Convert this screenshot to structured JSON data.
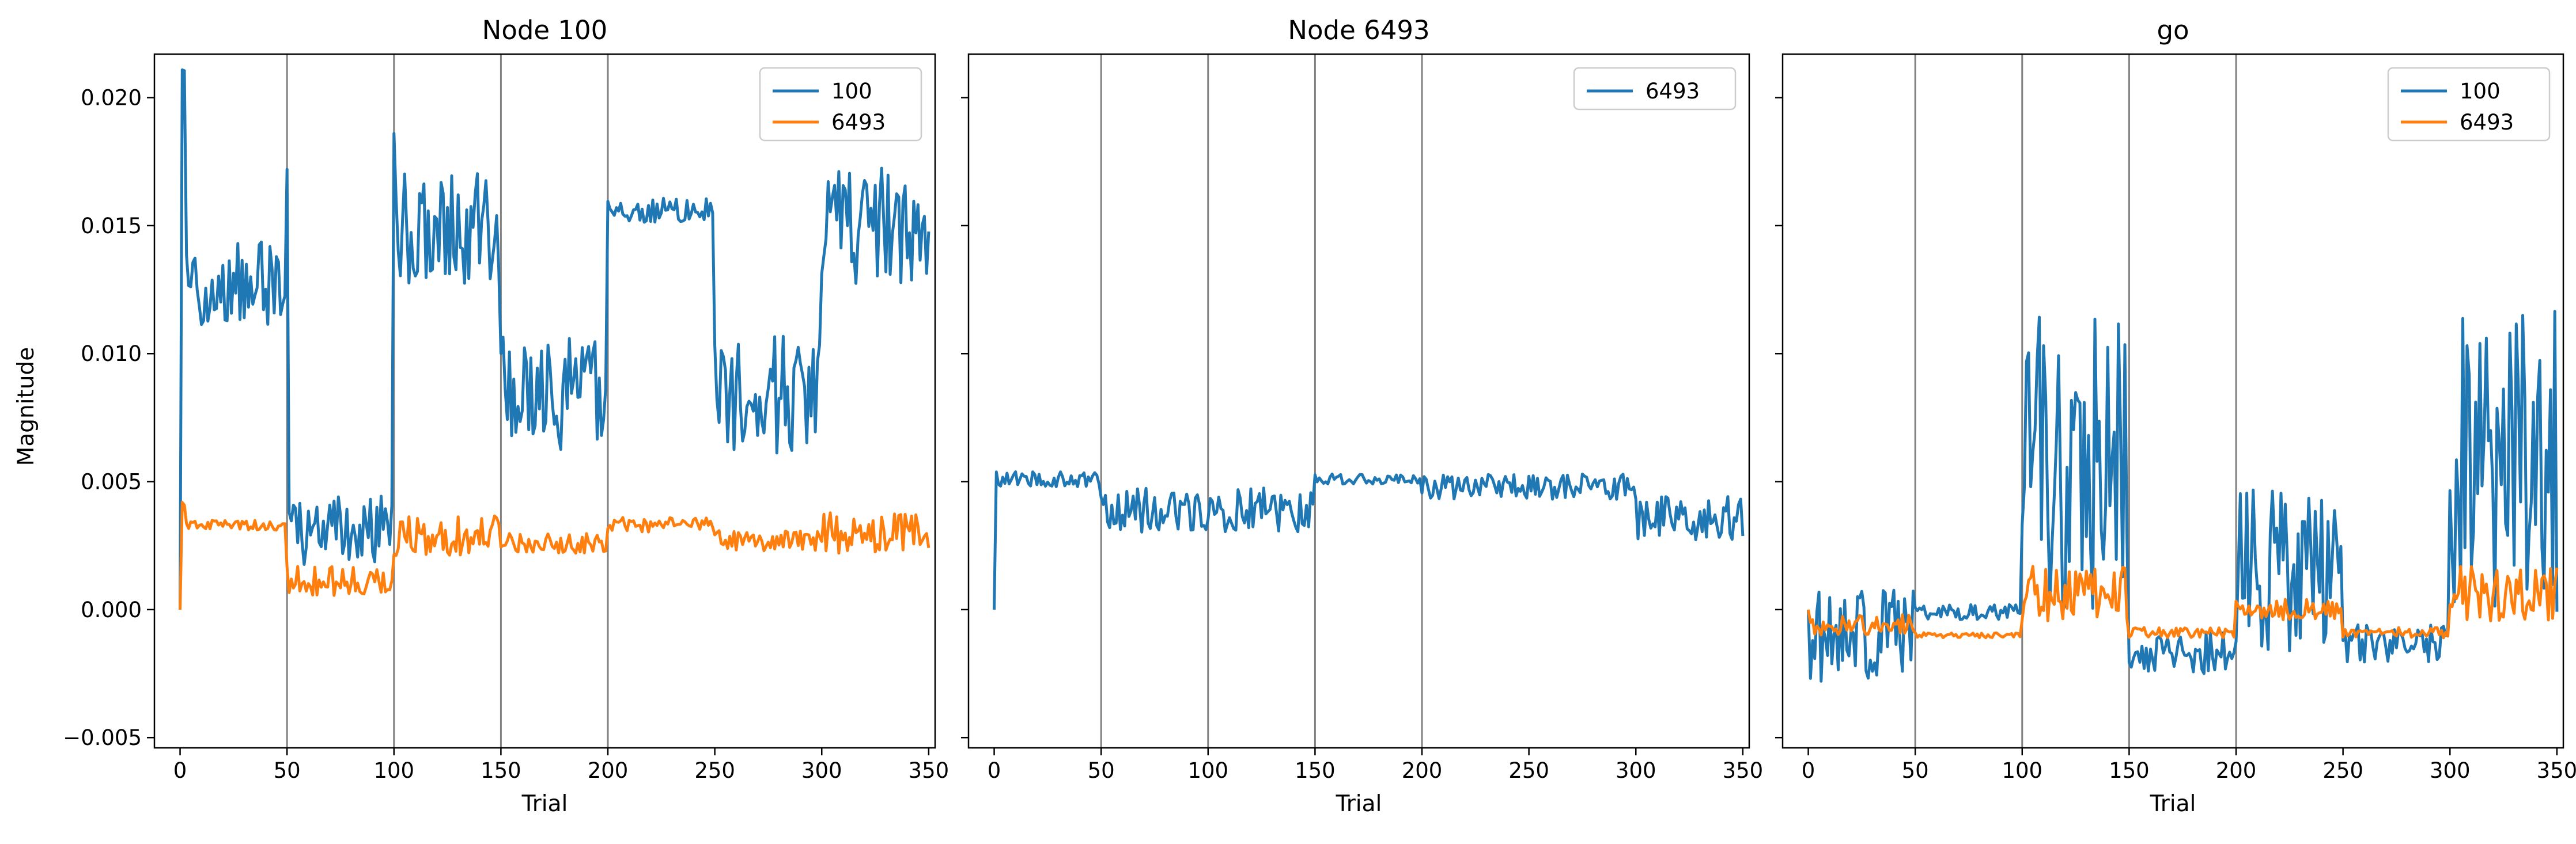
{
  "figure": {
    "ylabel": "Magnitude"
  },
  "chart_data": [
    {
      "type": "line",
      "title": "Node 100",
      "xlabel": "Trial",
      "ylabel": "Magnitude",
      "xlim": [
        -12,
        353
      ],
      "ylim": [
        -0.0054,
        0.0217
      ],
      "xticks": [
        0,
        50,
        100,
        150,
        200,
        250,
        300,
        350
      ],
      "yticks": [
        -0.005,
        0.0,
        0.005,
        0.01,
        0.015,
        0.02
      ],
      "ytick_labels": [
        "−0.005",
        "0.000",
        "0.005",
        "0.010",
        "0.015",
        "0.020"
      ],
      "vlines": [
        50,
        100,
        150,
        200
      ],
      "legend": "top-right",
      "grid": false,
      "series": [
        {
          "name": "100",
          "color": "#1f77b4",
          "segments": [
            {
              "x0": 0,
              "x1": 0,
              "base": 0.0,
              "amp": 0
            },
            {
              "x0": 1,
              "x1": 2,
              "base": 0.0203,
              "amp": 0.001
            },
            {
              "x0": 3,
              "x1": 49,
              "base": 0.0127,
              "amp": 0.0017
            },
            {
              "x0": 50,
              "x1": 50,
              "base": 0.0172,
              "amp": 0
            },
            {
              "x0": 51,
              "x1": 99,
              "base": 0.0031,
              "amp": 0.0014
            },
            {
              "x0": 100,
              "x1": 100,
              "base": 0.0186,
              "amp": 0
            },
            {
              "x0": 101,
              "x1": 149,
              "base": 0.015,
              "amp": 0.0023
            },
            {
              "x0": 150,
              "x1": 199,
              "base": 0.0084,
              "amp": 0.0023
            },
            {
              "x0": 200,
              "x1": 249,
              "base": 0.0156,
              "amp": 0.0005
            },
            {
              "x0": 250,
              "x1": 299,
              "base": 0.0084,
              "amp": 0.0023
            },
            {
              "x0": 300,
              "x1": 350,
              "base": 0.015,
              "amp": 0.0023
            }
          ]
        },
        {
          "name": "6493",
          "color": "#ff7f0e",
          "segments": [
            {
              "x0": 0,
              "x1": 0,
              "base": 0.0,
              "amp": 0
            },
            {
              "x0": 1,
              "x1": 2,
              "base": 0.0042,
              "amp": 0.0002
            },
            {
              "x0": 3,
              "x1": 49,
              "base": 0.0033,
              "amp": 0.0002
            },
            {
              "x0": 50,
              "x1": 99,
              "base": 0.0011,
              "amp": 0.0006
            },
            {
              "x0": 100,
              "x1": 149,
              "base": 0.0029,
              "amp": 0.0008
            },
            {
              "x0": 150,
              "x1": 199,
              "base": 0.0026,
              "amp": 0.0004
            },
            {
              "x0": 200,
              "x1": 249,
              "base": 0.0033,
              "amp": 0.0003
            },
            {
              "x0": 250,
              "x1": 299,
              "base": 0.0027,
              "amp": 0.0004
            },
            {
              "x0": 300,
              "x1": 350,
              "base": 0.003,
              "amp": 0.0008
            }
          ]
        }
      ]
    },
    {
      "type": "line",
      "title": "Node 6493",
      "xlabel": "Trial",
      "ylabel": "",
      "xlim": [
        -12,
        353
      ],
      "ylim": [
        -0.0054,
        0.0217
      ],
      "xticks": [
        0,
        50,
        100,
        150,
        200,
        250,
        300,
        350
      ],
      "yticks": [
        -0.005,
        0.0,
        0.005,
        0.01,
        0.015,
        0.02
      ],
      "ytick_labels": [
        "",
        "",
        "",
        "",
        "",
        ""
      ],
      "vlines": [
        50,
        100,
        150,
        200
      ],
      "legend": "top-right",
      "grid": false,
      "series": [
        {
          "name": "6493",
          "color": "#1f77b4",
          "segments": [
            {
              "x0": 0,
              "x1": 0,
              "base": 0.0,
              "amp": 0
            },
            {
              "x0": 1,
              "x1": 49,
              "base": 0.0051,
              "amp": 0.0003
            },
            {
              "x0": 50,
              "x1": 149,
              "base": 0.0039,
              "amp": 0.0009
            },
            {
              "x0": 150,
              "x1": 199,
              "base": 0.0051,
              "amp": 0.0002
            },
            {
              "x0": 200,
              "x1": 299,
              "base": 0.0048,
              "amp": 0.0005
            },
            {
              "x0": 300,
              "x1": 350,
              "base": 0.0036,
              "amp": 0.0009
            }
          ]
        }
      ]
    },
    {
      "type": "line",
      "title": "go",
      "xlabel": "Trial",
      "ylabel": "",
      "xlim": [
        -12,
        353
      ],
      "ylim": [
        -0.0054,
        0.0217
      ],
      "xticks": [
        0,
        50,
        100,
        150,
        200,
        250,
        300,
        350
      ],
      "yticks": [
        -0.005,
        0.0,
        0.005,
        0.01,
        0.015,
        0.02
      ],
      "ytick_labels": [
        "",
        "",
        "",
        "",
        "",
        ""
      ],
      "vlines": [
        50,
        100,
        150,
        200
      ],
      "legend": "top-right",
      "grid": false,
      "series": [
        {
          "name": "100",
          "color": "#1f77b4",
          "segments": [
            {
              "x0": 0,
              "x1": 0,
              "base": 0.0,
              "amp": 0
            },
            {
              "x0": 1,
              "x1": 49,
              "base": -0.001,
              "amp": 0.0018
            },
            {
              "x0": 50,
              "x1": 99,
              "base": -0.0001,
              "amp": 0.0003
            },
            {
              "x0": 100,
              "x1": 149,
              "base": 0.0057,
              "amp": 0.006
            },
            {
              "x0": 150,
              "x1": 199,
              "base": -0.0017,
              "amp": 0.0008
            },
            {
              "x0": 200,
              "x1": 249,
              "base": 0.0015,
              "amp": 0.0032
            },
            {
              "x0": 250,
              "x1": 299,
              "base": -0.0013,
              "amp": 0.0008
            },
            {
              "x0": 300,
              "x1": 350,
              "base": 0.0057,
              "amp": 0.006
            }
          ]
        },
        {
          "name": "6493",
          "color": "#ff7f0e",
          "segments": [
            {
              "x0": 0,
              "x1": 0,
              "base": 0.0,
              "amp": 0
            },
            {
              "x0": 1,
              "x1": 49,
              "base": -0.0006,
              "amp": 0.0004
            },
            {
              "x0": 50,
              "x1": 99,
              "base": -0.001,
              "amp": 0.0001
            },
            {
              "x0": 100,
              "x1": 149,
              "base": 0.0006,
              "amp": 0.0011
            },
            {
              "x0": 150,
              "x1": 199,
              "base": -0.0009,
              "amp": 0.0002
            },
            {
              "x0": 200,
              "x1": 249,
              "base": 0.0,
              "amp": 0.0004
            },
            {
              "x0": 250,
              "x1": 299,
              "base": -0.0009,
              "amp": 0.0002
            },
            {
              "x0": 300,
              "x1": 350,
              "base": 0.0006,
              "amp": 0.0011
            }
          ]
        }
      ]
    }
  ]
}
